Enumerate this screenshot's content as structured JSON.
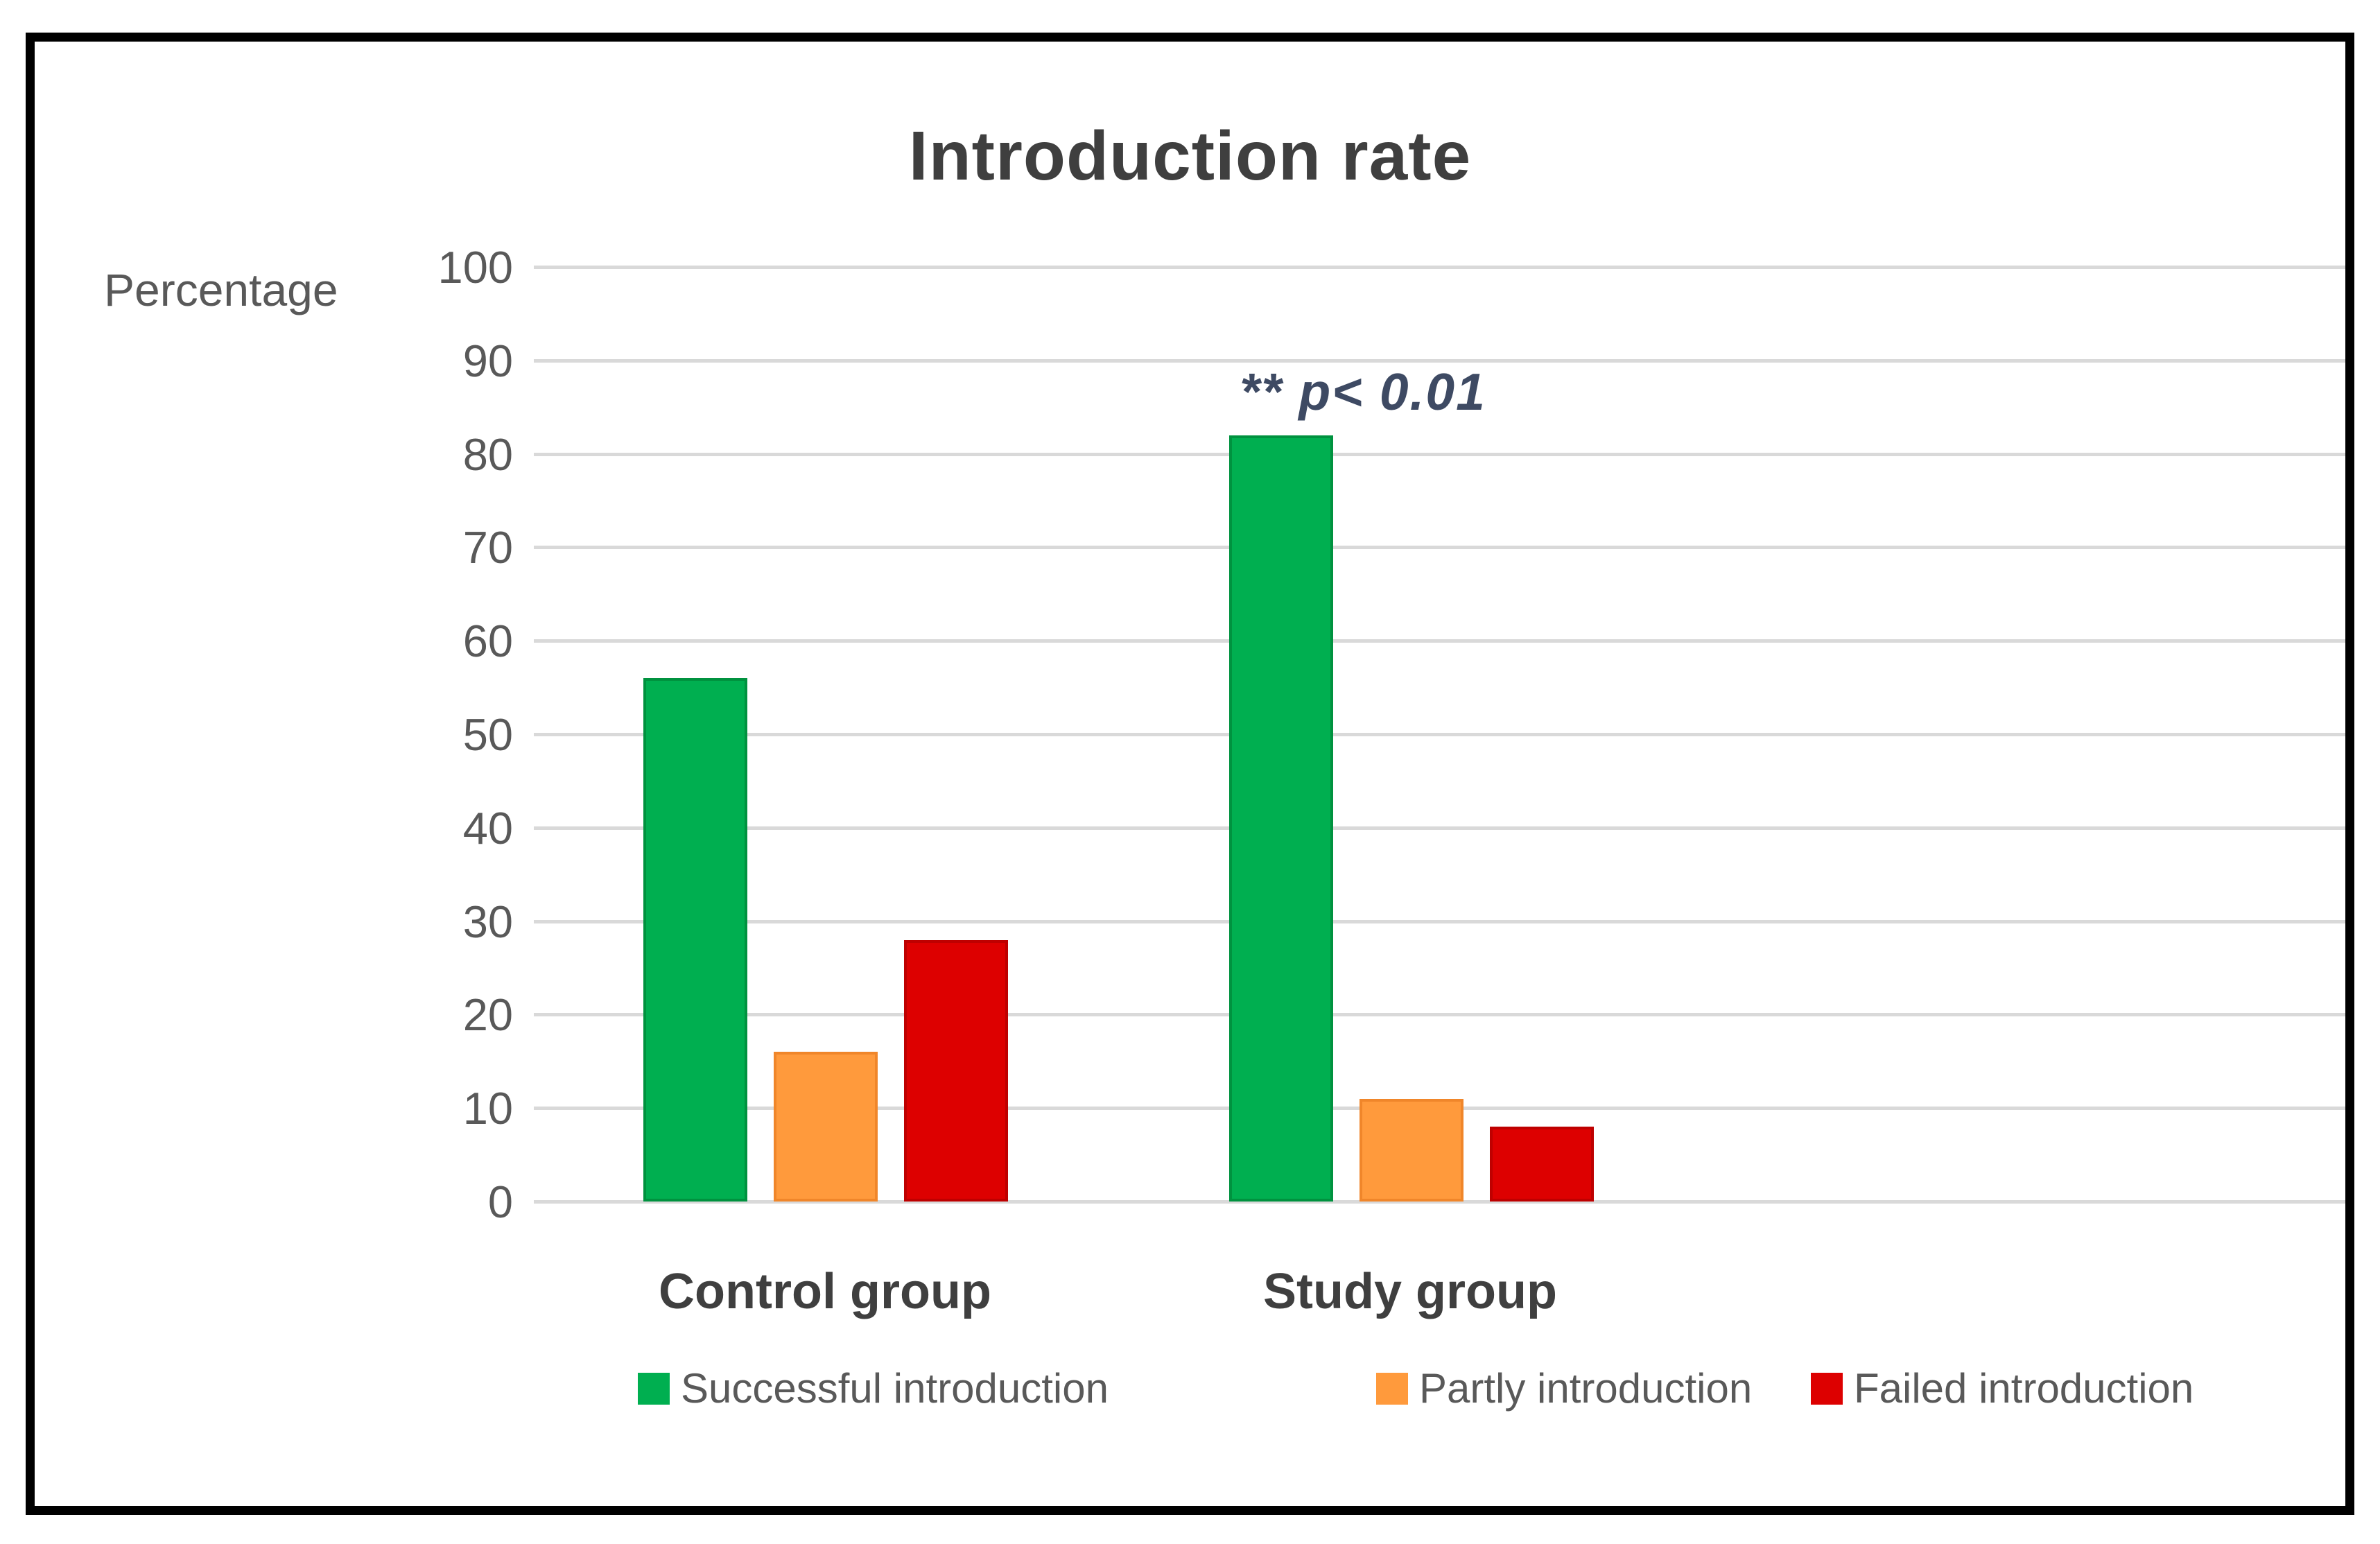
{
  "figure": {
    "background": "#ffffff",
    "border_color": "#000000"
  },
  "chart_data": {
    "type": "bar",
    "title": "Introduction rate",
    "ylabel": "Percentage",
    "xlabel": "",
    "ylim": [
      0,
      100
    ],
    "ytick_step": 10,
    "ytick_labels": [
      "100",
      "90",
      "80",
      "70",
      "60",
      "50",
      "40",
      "30",
      "20",
      "10",
      "0"
    ],
    "grid": "horizontal",
    "gridline_color": "#d9d9d9",
    "legend_position": "bottom",
    "categories": [
      "Control group",
      "Study group"
    ],
    "series": [
      {
        "name": "Successful introduction",
        "color": "#00af50",
        "edge_color": "#00923f",
        "values": [
          56,
          82
        ]
      },
      {
        "name": "Partly introduction",
        "color": "#ff9a3c",
        "edge_color": "#f0862a",
        "values": [
          16,
          11
        ]
      },
      {
        "name": "Failed introduction",
        "color": "#dd0000",
        "edge_color": "#be0000",
        "values": [
          28,
          8
        ]
      }
    ],
    "annotation": {
      "text": "** p< 0.01",
      "color": "#3e4a63",
      "target": "Study group - Successful introduction bar"
    }
  },
  "text_colors": {
    "title": "#3f3f3f",
    "axis": "#595959",
    "category": "#3f3f3f"
  }
}
